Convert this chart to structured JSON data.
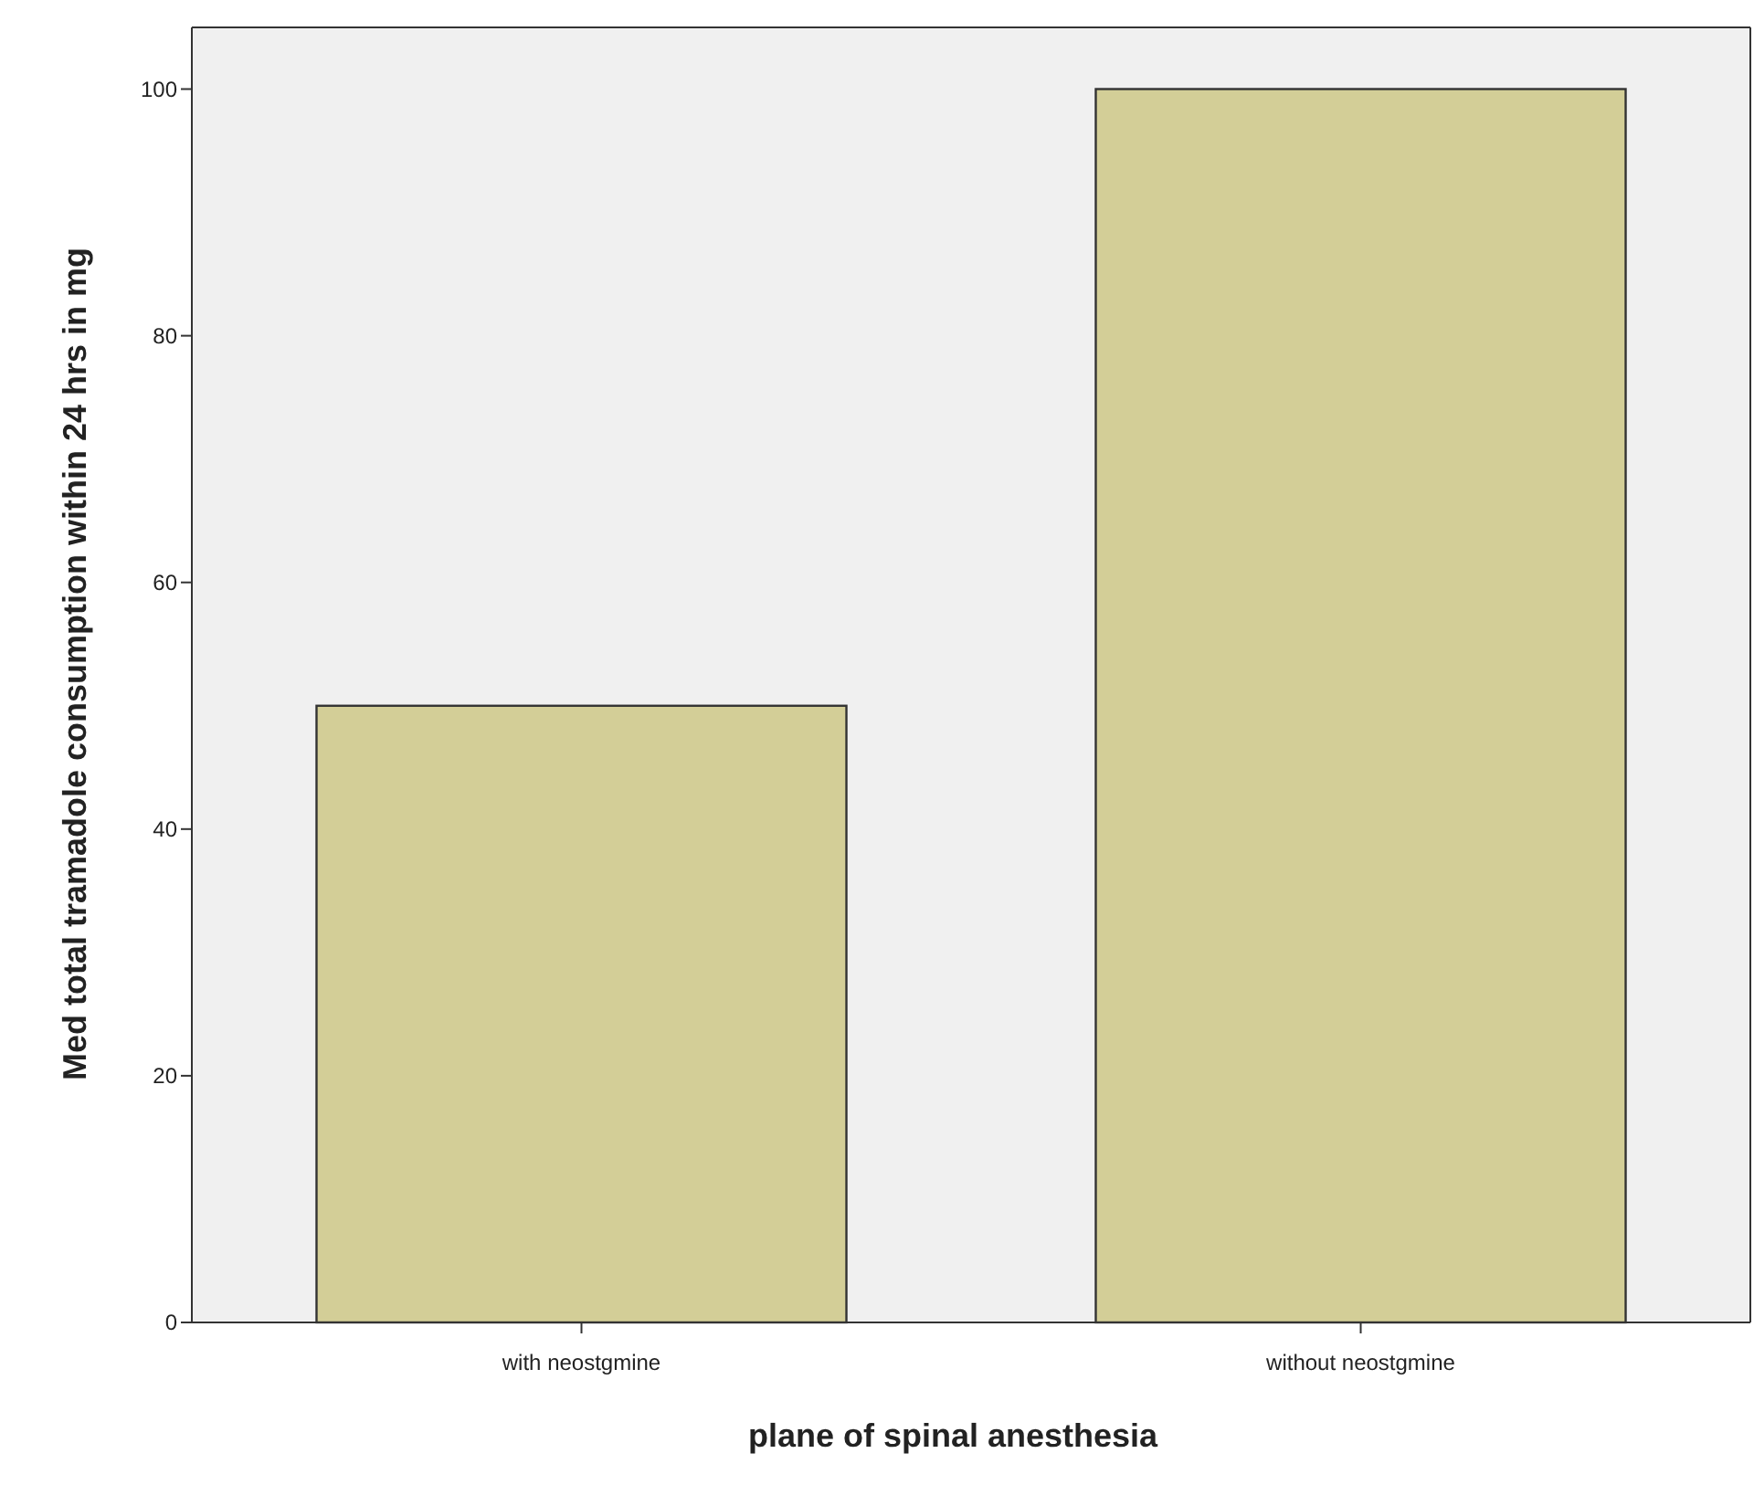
{
  "chart_data": {
    "type": "bar",
    "categories": [
      "with neostgmine",
      "without neostgmine"
    ],
    "values": [
      50,
      100
    ],
    "color": "#d3ce97",
    "ylim": [
      0,
      105
    ],
    "yticks": [
      0,
      20,
      40,
      60,
      80,
      100
    ],
    "xlabel": "plane of spinal anesthesia",
    "ylabel": "Med total tramadole consumption within 24 hrs in mg",
    "grid": false
  }
}
